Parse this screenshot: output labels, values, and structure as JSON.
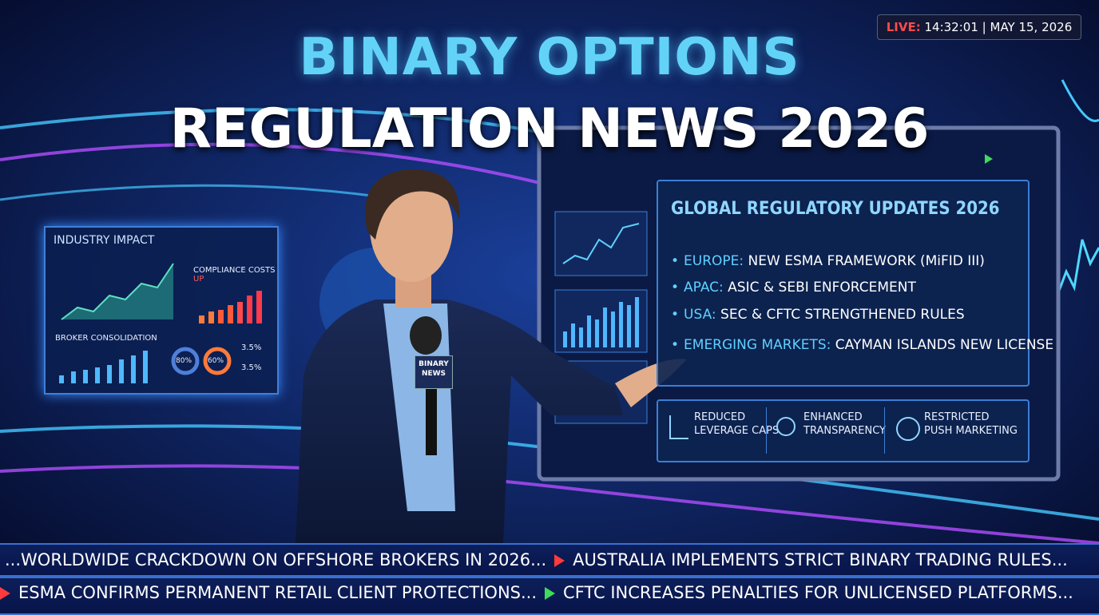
{
  "header": {
    "title_line1": "BINARY OPTIONS",
    "title_line2": "REGULATION NEWS 2026"
  },
  "live": {
    "label": "LIVE:",
    "time": "14:32:01",
    "separator": "|",
    "date": "MAY 15, 2026"
  },
  "left_panel": {
    "title": "INDUSTRY IMPACT",
    "compliance": "COMPLIANCE COSTS",
    "compliance_tag": "UP",
    "consolidation": "BROKER CONSOLIDATION",
    "stats": [
      "80%",
      "60%",
      "3.5%",
      "3.5%"
    ]
  },
  "microphone": {
    "line1": "BINARY",
    "line2": "NEWS"
  },
  "screen": {
    "title": "GLOBAL REGULATORY UPDATES 2026",
    "updates": [
      {
        "region": "EUROPE:",
        "text": "NEW ESMA FRAMEWORK (MiFID III)"
      },
      {
        "region": "APAC:",
        "text": "ASIC & SEBI ENFORCEMENT"
      },
      {
        "region": "USA:",
        "text": "SEC & CFTC STRENGTHENED RULES"
      },
      {
        "region": "EMERGING MARKETS:",
        "text": "CAYMAN ISLANDS NEW LICENSE"
      }
    ],
    "features": [
      [
        "REDUCED",
        "LEVERAGE CAPS"
      ],
      [
        "ENHANCED",
        "TRANSPARENCY"
      ],
      [
        "RESTRICTED",
        "PUSH MARKETING"
      ]
    ]
  },
  "ticker": {
    "row1": [
      "...WORLDWIDE CRACKDOWN ON OFFSHORE BROKERS IN 2026...",
      "AUSTRALIA IMPLEMENTS STRICT BINARY TRADING RULES..."
    ],
    "row2": [
      "ESMA CONFIRMS PERMANENT RETAIL CLIENT PROTECTIONS...",
      "CFTC INCREASES PENALTIES FOR UNLICENSED PLATFORMS..."
    ]
  }
}
